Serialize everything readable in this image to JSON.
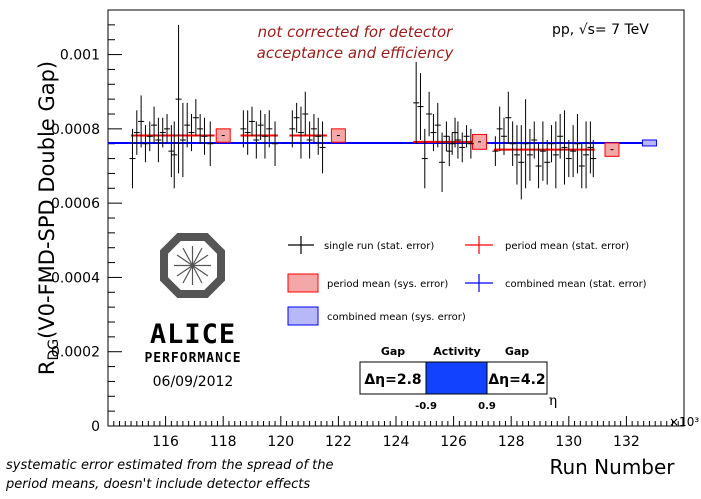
{
  "chart_data": {
    "type": "scatter",
    "title": "",
    "xlabel": "Run Number",
    "ylabel_main": "R",
    "ylabel_sub": "DG",
    "ylabel_rest": "(V0-FMD-SPD Double Gap)",
    "x_multiplier": "×10³",
    "xlim": [
      114,
      134
    ],
    "ylim": [
      0,
      0.00112
    ],
    "x_ticks": [
      116,
      118,
      120,
      122,
      124,
      126,
      128,
      130,
      132
    ],
    "x_tick_labels": [
      "116",
      "118",
      "120",
      "122",
      "124",
      "126",
      "128",
      "130",
      "132"
    ],
    "y_ticks": [
      0,
      0.0002,
      0.0004,
      0.0006,
      0.0008,
      0.001
    ],
    "y_tick_labels": [
      "0",
      "0.0002",
      "0.0004",
      "0.0006",
      "0.0008",
      "0.001"
    ],
    "collision_label": "pp,",
    "energy_label": "s= 7 TeV",
    "energy_root": "√",
    "annotation_lines": [
      "not corrected for detector",
      "acceptance and efficiency"
    ],
    "footnote_lines": [
      "systematic error estimated from the spread of the",
      "period means, doesn't include detector effects"
    ],
    "logo_text": "ALICE",
    "logo_subtext": "PERFORMANCE",
    "date_text": "06/09/2012",
    "legend": {
      "single_run": "single run (stat. error)",
      "period_mean_stat": "period mean (stat. error)",
      "period_mean_sys": "period mean (sys. error)",
      "combined_mean_stat": "combined mean (stat. error)",
      "combined_mean_sys": "combined mean (sys. error)"
    },
    "gap_box": {
      "left_header": "Gap",
      "center_header": "Activity",
      "right_header": "Gap",
      "left_value": "Δη=2.8",
      "right_value": "Δη=4.2",
      "edge_left": "-0.9",
      "edge_right": "0.9",
      "axis_symbol": "η"
    },
    "combined_mean": 0.000762,
    "combined_sys_point": {
      "x": 132.8,
      "y": 0.000762,
      "yerr": 8e-06
    },
    "periods": [
      {
        "x_start": 114.8,
        "x_end": 117.7,
        "box_x": 118.0,
        "value": 0.000782,
        "sys": 1.8e-05
      },
      {
        "x_start": 118.6,
        "x_end": 119.9,
        "box_x": 122.0,
        "value": 0.000782,
        "sys": 1.8e-05
      },
      {
        "x_start": 120.3,
        "x_end": 121.6,
        "box_x": 122.0,
        "value": 0.000782,
        "sys": 1.8e-05
      },
      {
        "x_start": 124.6,
        "x_end": 126.8,
        "box_x": 126.9,
        "value": 0.000765,
        "sys": 2e-05
      },
      {
        "x_start": 127.4,
        "x_end": 130.9,
        "box_x": 131.5,
        "value": 0.000744,
        "sys": 1.8e-05
      }
    ],
    "runs": [
      {
        "x": 114.85,
        "y": 0.00072,
        "err": 8e-05
      },
      {
        "x": 115.0,
        "y": 0.00079,
        "err": 6e-05
      },
      {
        "x": 115.15,
        "y": 0.00082,
        "err": 7e-05
      },
      {
        "x": 115.3,
        "y": 0.00076,
        "err": 5e-05
      },
      {
        "x": 115.45,
        "y": 0.00078,
        "err": 4e-05
      },
      {
        "x": 115.6,
        "y": 0.00081,
        "err": 5e-05
      },
      {
        "x": 115.75,
        "y": 0.00077,
        "err": 6e-05
      },
      {
        "x": 115.9,
        "y": 0.00079,
        "err": 4e-05
      },
      {
        "x": 116.05,
        "y": 0.0008,
        "err": 4e-05
      },
      {
        "x": 116.2,
        "y": 0.00074,
        "err": 7e-05
      },
      {
        "x": 116.3,
        "y": 0.00073,
        "err": 9e-05
      },
      {
        "x": 116.45,
        "y": 0.00088,
        "err": 0.0002
      },
      {
        "x": 116.6,
        "y": 0.00077,
        "err": 0.0001
      },
      {
        "x": 116.75,
        "y": 0.00081,
        "err": 6e-05
      },
      {
        "x": 116.9,
        "y": 0.00079,
        "err": 5e-05
      },
      {
        "x": 117.05,
        "y": 0.00083,
        "err": 5e-05
      },
      {
        "x": 117.2,
        "y": 0.0008,
        "err": 4e-05
      },
      {
        "x": 117.35,
        "y": 0.00078,
        "err": 5e-05
      },
      {
        "x": 117.55,
        "y": 0.00076,
        "err": 6e-05
      },
      {
        "x": 118.7,
        "y": 0.0008,
        "err": 5e-05
      },
      {
        "x": 118.85,
        "y": 0.00079,
        "err": 6e-05
      },
      {
        "x": 119.0,
        "y": 0.00082,
        "err": 4e-05
      },
      {
        "x": 119.15,
        "y": 0.00077,
        "err": 5e-05
      },
      {
        "x": 119.3,
        "y": 0.00081,
        "err": 4e-05
      },
      {
        "x": 119.45,
        "y": 0.00078,
        "err": 6e-05
      },
      {
        "x": 119.6,
        "y": 0.0008,
        "err": 5e-05
      },
      {
        "x": 119.8,
        "y": 0.00076,
        "err": 6e-05
      },
      {
        "x": 120.4,
        "y": 0.0008,
        "err": 5e-05
      },
      {
        "x": 120.55,
        "y": 0.00083,
        "err": 4e-05
      },
      {
        "x": 120.7,
        "y": 0.00079,
        "err": 7e-05
      },
      {
        "x": 120.85,
        "y": 0.00084,
        "err": 6e-05
      },
      {
        "x": 121.0,
        "y": 0.00077,
        "err": 5e-05
      },
      {
        "x": 121.15,
        "y": 0.0008,
        "err": 4e-05
      },
      {
        "x": 121.3,
        "y": 0.00078,
        "err": 5e-05
      },
      {
        "x": 121.45,
        "y": 0.00075,
        "err": 7e-05
      },
      {
        "x": 124.7,
        "y": 0.00087,
        "err": 0.00011
      },
      {
        "x": 124.85,
        "y": 0.00086,
        "err": 9e-05
      },
      {
        "x": 125.0,
        "y": 0.00072,
        "err": 8e-05
      },
      {
        "x": 125.15,
        "y": 0.00084,
        "err": 6e-05
      },
      {
        "x": 125.3,
        "y": 0.00079,
        "err": 5e-05
      },
      {
        "x": 125.45,
        "y": 0.00081,
        "err": 6e-05
      },
      {
        "x": 125.6,
        "y": 0.00071,
        "err": 8e-05
      },
      {
        "x": 125.75,
        "y": 0.00078,
        "err": 4e-05
      },
      {
        "x": 125.85,
        "y": 0.00074,
        "err": 4e-05
      },
      {
        "x": 125.95,
        "y": 0.00076,
        "err": 3e-05
      },
      {
        "x": 126.05,
        "y": 0.00079,
        "err": 4e-05
      },
      {
        "x": 126.15,
        "y": 0.00077,
        "err": 5e-05
      },
      {
        "x": 126.3,
        "y": 0.00075,
        "err": 4e-05
      },
      {
        "x": 126.45,
        "y": 0.00078,
        "err": 3e-05
      },
      {
        "x": 126.6,
        "y": 0.00076,
        "err": 4e-05
      },
      {
        "x": 127.45,
        "y": 0.00074,
        "err": 4e-05
      },
      {
        "x": 127.6,
        "y": 0.0008,
        "err": 6e-05
      },
      {
        "x": 127.75,
        "y": 0.00078,
        "err": 5e-05
      },
      {
        "x": 127.9,
        "y": 0.00083,
        "err": 7e-05
      },
      {
        "x": 128.05,
        "y": 0.00076,
        "err": 6e-05
      },
      {
        "x": 128.2,
        "y": 0.00073,
        "err": 8e-05
      },
      {
        "x": 128.35,
        "y": 0.00071,
        "err": 0.0001
      },
      {
        "x": 128.5,
        "y": 0.00076,
        "err": 0.00012
      },
      {
        "x": 128.65,
        "y": 0.00073,
        "err": 7e-05
      },
      {
        "x": 128.8,
        "y": 0.00077,
        "err": 5e-05
      },
      {
        "x": 128.95,
        "y": 0.0007,
        "err": 6e-05
      },
      {
        "x": 129.1,
        "y": 0.00074,
        "err": 8e-05
      },
      {
        "x": 129.25,
        "y": 0.00071,
        "err": 6e-05
      },
      {
        "x": 129.4,
        "y": 0.00076,
        "err": 5e-05
      },
      {
        "x": 129.55,
        "y": 0.00073,
        "err": 9e-05
      },
      {
        "x": 129.7,
        "y": 0.00078,
        "err": 6e-05
      },
      {
        "x": 129.85,
        "y": 0.00075,
        "err": 0.0001
      },
      {
        "x": 130.0,
        "y": 0.00072,
        "err": 5e-05
      },
      {
        "x": 130.15,
        "y": 0.00074,
        "err": 7e-05
      },
      {
        "x": 130.3,
        "y": 0.00076,
        "err": 8e-05
      },
      {
        "x": 130.45,
        "y": 0.0007,
        "err": 6e-05
      },
      {
        "x": 130.6,
        "y": 0.00073,
        "err": 9e-05
      },
      {
        "x": 130.75,
        "y": 0.00075,
        "err": 7e-05
      },
      {
        "x": 130.85,
        "y": 0.00072,
        "err": 5e-05
      }
    ]
  }
}
